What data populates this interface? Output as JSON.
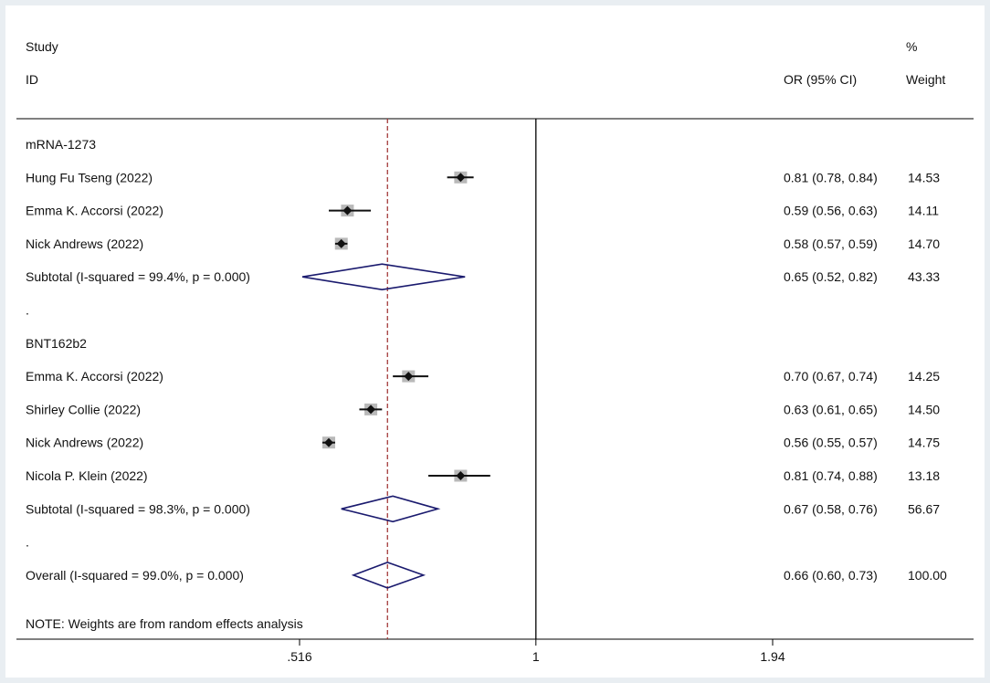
{
  "chart_data": {
    "type": "forest",
    "header": {
      "study_line1": "Study",
      "study_line2": "ID",
      "effect": "OR (95% CI)",
      "weight_line1": "%",
      "weight_line2": "Weight"
    },
    "x_ticks": [
      {
        "value": 0.516,
        "label": ".516"
      },
      {
        "value": 1,
        "label": "1"
      },
      {
        "value": 1.94,
        "label": "1.94"
      }
    ],
    "x_scale": "log",
    "null_line": 1,
    "overall_line": 0.66,
    "rows": [
      {
        "kind": "group",
        "label": "mRNA-1273"
      },
      {
        "kind": "study",
        "label": "Hung Fu Tseng (2022)",
        "or": 0.81,
        "lo": 0.78,
        "hi": 0.84,
        "or_text": "0.81 (0.78, 0.84)",
        "weight": "14.53"
      },
      {
        "kind": "study",
        "label": "Emma K. Accorsi  (2022)",
        "or": 0.59,
        "lo": 0.56,
        "hi": 0.63,
        "or_text": "0.59 (0.56, 0.63)",
        "weight": "14.11"
      },
      {
        "kind": "study",
        "label": "Nick Andrews (2022)",
        "or": 0.58,
        "lo": 0.57,
        "hi": 0.59,
        "or_text": "0.58 (0.57, 0.59)",
        "weight": "14.70"
      },
      {
        "kind": "subtotal",
        "label": "Subtotal  (I-squared = 99.4%, p = 0.000)",
        "or": 0.65,
        "lo": 0.52,
        "hi": 0.82,
        "or_text": "0.65 (0.52, 0.82)",
        "weight": "43.33"
      },
      {
        "kind": "spacer",
        "label": "."
      },
      {
        "kind": "group",
        "label": "BNT162b2"
      },
      {
        "kind": "study",
        "label": "Emma K. Accorsi  (2022)",
        "or": 0.7,
        "lo": 0.67,
        "hi": 0.74,
        "or_text": "0.70 (0.67, 0.74)",
        "weight": "14.25"
      },
      {
        "kind": "study",
        "label": "Shirley Collie (2022)",
        "or": 0.63,
        "lo": 0.61,
        "hi": 0.65,
        "or_text": "0.63 (0.61, 0.65)",
        "weight": "14.50"
      },
      {
        "kind": "study",
        "label": "Nick Andrews (2022)",
        "or": 0.56,
        "lo": 0.55,
        "hi": 0.57,
        "or_text": "0.56 (0.55, 0.57)",
        "weight": "14.75"
      },
      {
        "kind": "study",
        "label": "Nicola P. Klein (2022)",
        "or": 0.81,
        "lo": 0.74,
        "hi": 0.88,
        "or_text": "0.81 (0.74, 0.88)",
        "weight": "13.18"
      },
      {
        "kind": "subtotal",
        "label": "Subtotal  (I-squared = 98.3%, p = 0.000)",
        "or": 0.67,
        "lo": 0.58,
        "hi": 0.76,
        "or_text": "0.67 (0.58, 0.76)",
        "weight": "56.67"
      },
      {
        "kind": "spacer",
        "label": "."
      },
      {
        "kind": "overall",
        "label": "Overall  (I-squared = 99.0%, p = 0.000)",
        "or": 0.66,
        "lo": 0.6,
        "hi": 0.73,
        "or_text": "0.66 (0.60, 0.73)",
        "weight": "100.00"
      }
    ],
    "note": "NOTE: Weights are from random effects analysis",
    "colors": {
      "point": "#111111",
      "weight_box": "#b9b9b9",
      "diamond": "#1a1a6e",
      "overall_line": "#a33a3a",
      "axis": "#000000"
    }
  }
}
